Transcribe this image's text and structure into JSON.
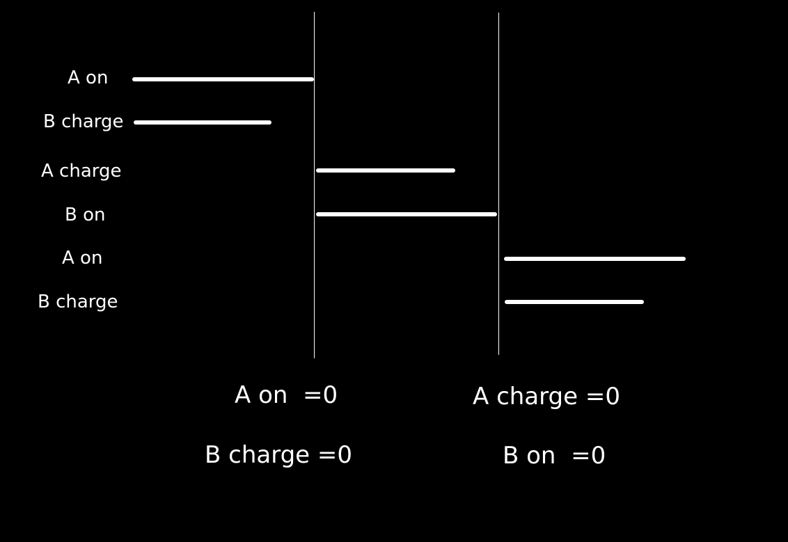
{
  "colors": {
    "background": "#000000",
    "foreground": "#ffffff"
  },
  "rows": [
    {
      "label": "A on"
    },
    {
      "label": "B charge"
    },
    {
      "label": "A charge"
    },
    {
      "label": "B on"
    },
    {
      "label": "A on"
    },
    {
      "label": "B charge"
    }
  ],
  "conditions": {
    "left": {
      "line1": "A on  =0",
      "line2": "B charge =0"
    },
    "right": {
      "line1": "A charge =0",
      "line2": "B on  =0"
    }
  }
}
